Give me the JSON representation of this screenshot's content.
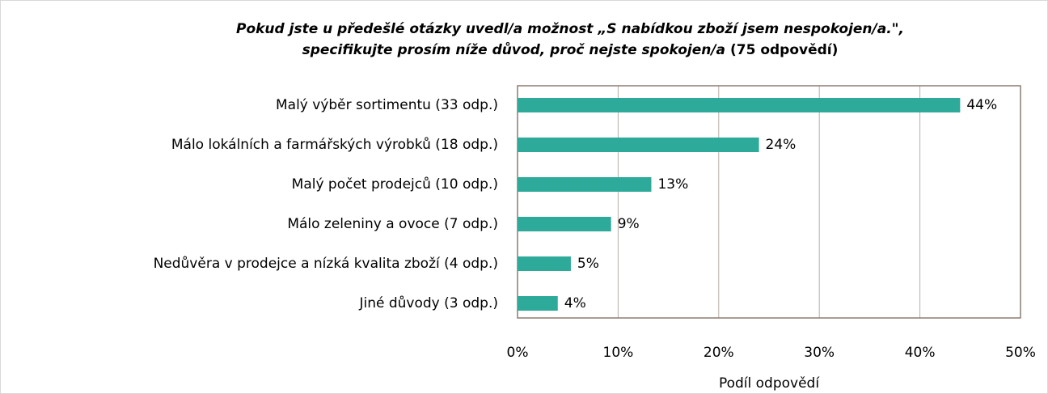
{
  "chart_data": {
    "type": "barh",
    "title": [
      "Pokud jste u předešlé otázky uvedl/a možnost „S nabídkou zboží jsem nespokojen/a.\",",
      "specifikujte prosím níže důvod, proč nejste spokojen/a"
    ],
    "title_note": "(75 odpovědí)",
    "categories": [
      "Malý výběr sortimentu (33 odp.)",
      "Málo lokálních a farmářských výrobků (18 odp.)",
      "Malý počet prodejců (10 odp.)",
      "Málo zeleniny a ovoce (7 odp.)",
      "Nedůvěra v prodejce a nízká kvalita zboží (4 odp.)",
      "Jiné důvody (3 odp.)"
    ],
    "values": [
      44,
      24,
      13.3,
      9.3,
      5.3,
      4
    ],
    "value_labels": [
      "44%",
      "24%",
      "13%",
      "9%",
      "5%",
      "4%"
    ],
    "color": "#2eaa9b",
    "xlim": [
      0,
      50
    ],
    "xticks": [
      {
        "value": 0,
        "label": "0%"
      },
      {
        "value": 10,
        "label": "10%"
      },
      {
        "value": 20,
        "label": "20%"
      },
      {
        "value": 30,
        "label": "30%"
      },
      {
        "value": 40,
        "label": "40%"
      },
      {
        "value": 50,
        "label": "50%"
      }
    ],
    "xlabel": "Podíl odpovědí",
    "grid": true
  }
}
